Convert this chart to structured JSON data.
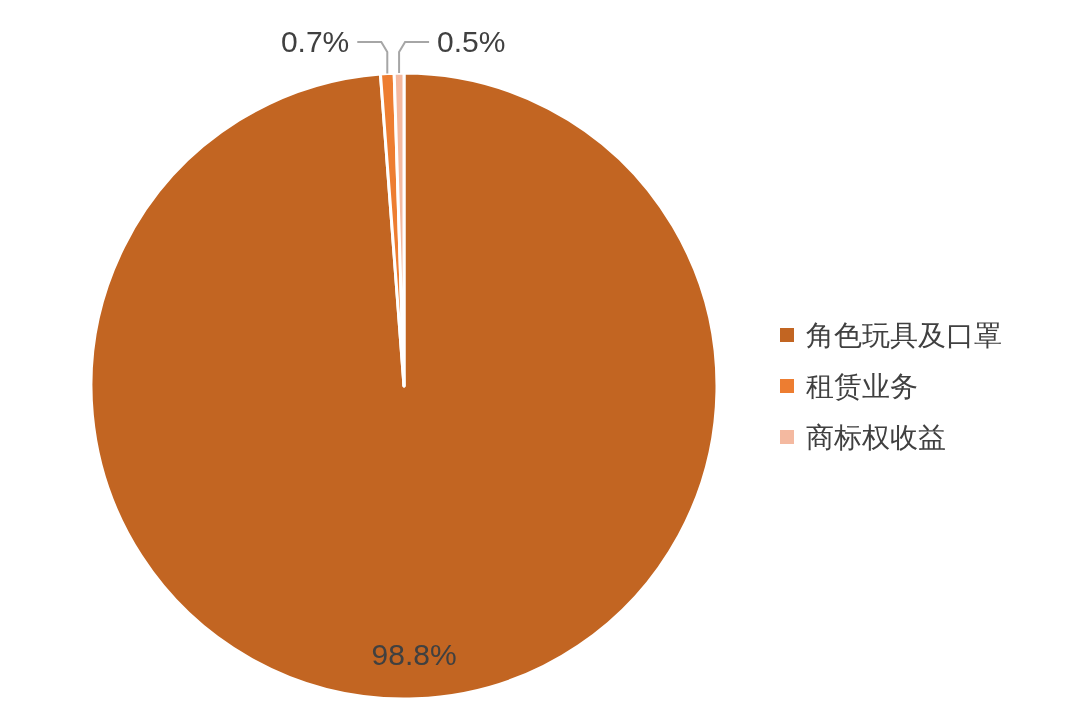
{
  "chart_data": {
    "type": "pie",
    "categories": [
      "角色玩具及口罩",
      "租赁业务",
      "商标权收益"
    ],
    "values": [
      98.8,
      0.7,
      0.5
    ],
    "value_labels": [
      "98.8%",
      "0.7%",
      "0.5%"
    ],
    "colors": [
      "#c26522",
      "#ed7d31",
      "#f4b9a0"
    ],
    "legend": "right"
  }
}
